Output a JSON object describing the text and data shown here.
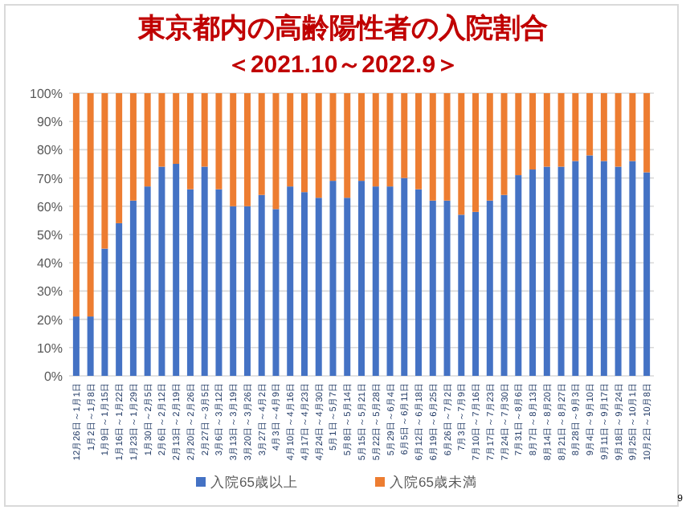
{
  "chart_data": {
    "type": "bar",
    "stacked": true,
    "title": "東京都内の高齢陽性者の入院割合",
    "subtitle": "＜2021.10～2022.9＞",
    "categories": [
      "12月26日～1月1日",
      "1月2日～1月8日",
      "1月9日～1月15日",
      "1月16日～1月22日",
      "1月23日～1月29日",
      "1月30日～2月5日",
      "2月6日～2月12日",
      "2月13日～2月19日",
      "2月20日～2月26日",
      "2月27日～3月5日",
      "3月6日～3月12日",
      "3月13日～3月19日",
      "3月20日～3月26日",
      "3月27日～4月2日",
      "4月3日～4月9日",
      "4月10日～4月16日",
      "4月17日～4月23日",
      "4月24日～4月30日",
      "5月1日～5月7日",
      "5月8日～5月14日",
      "5月15日～5月21日",
      "5月22日～5月28日",
      "5月29日～6月4日",
      "6月5日～6月11日",
      "6月12日～6月18日",
      "6月19日～6月25日",
      "6月26日～7月2日",
      "7月3日～7月9日",
      "7月10日～7月16日",
      "7月17日～7月23日",
      "7月24日～7月30日",
      "7月31日～8月6日",
      "8月7日～8月13日",
      "8月14日～8月20日",
      "8月21日～8月27日",
      "8月28日～9月3日",
      "9月4日～9月10日",
      "9月11日～9月17日",
      "9月18日～9月24日",
      "9月25日～10月1日",
      "10月2日～10月8日"
    ],
    "series": [
      {
        "name": "入院65歳以上",
        "color": "#4472c4",
        "values": [
          21,
          21,
          45,
          54,
          62,
          67,
          74,
          75,
          66,
          74,
          66,
          60,
          60,
          64,
          59,
          67,
          65,
          63,
          69,
          63,
          69,
          67,
          67,
          70,
          66,
          62,
          62,
          57,
          58,
          62,
          64,
          71,
          73,
          74,
          74,
          76,
          78,
          76,
          74,
          76,
          72
        ]
      },
      {
        "name": "入院65歳未満",
        "color": "#ed7d31",
        "values": [
          79,
          79,
          55,
          46,
          38,
          33,
          26,
          25,
          34,
          26,
          34,
          40,
          40,
          36,
          41,
          33,
          35,
          37,
          31,
          37,
          31,
          33,
          33,
          30,
          34,
          38,
          38,
          43,
          42,
          38,
          36,
          29,
          27,
          26,
          26,
          24,
          22,
          24,
          26,
          24,
          28
        ]
      }
    ],
    "ylim": [
      0,
      100
    ],
    "yticks": [
      {
        "value": 0,
        "label": "0%"
      },
      {
        "value": 10,
        "label": "10%"
      },
      {
        "value": 20,
        "label": "20%"
      },
      {
        "value": 30,
        "label": "30%"
      },
      {
        "value": 40,
        "label": "40%"
      },
      {
        "value": 50,
        "label": "50%"
      },
      {
        "value": 60,
        "label": "60%"
      },
      {
        "value": 70,
        "label": "70%"
      },
      {
        "value": 80,
        "label": "80%"
      },
      {
        "value": 90,
        "label": "90%"
      },
      {
        "value": 100,
        "label": "100%"
      }
    ],
    "grid": "y",
    "legend": "bottom",
    "annotations": [
      "9"
    ]
  }
}
